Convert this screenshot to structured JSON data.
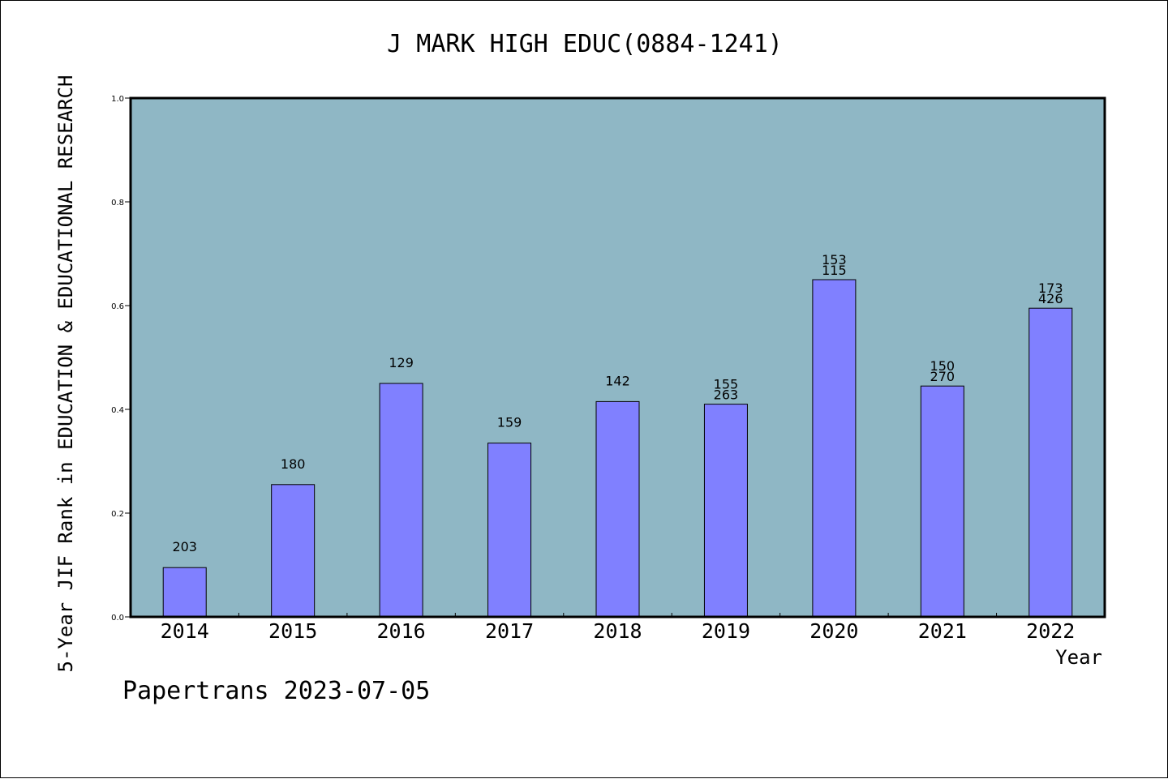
{
  "chart_data": {
    "type": "bar",
    "title": "J MARK HIGH EDUC(0884-1241)",
    "xlabel": "Year",
    "ylabel": "5-Year JIF Rank in EDUCATION & EDUCATIONAL RESEARCH",
    "ylim": [
      0,
      1.0
    ],
    "yticks": [
      "0.0",
      "0.2",
      "0.4",
      "0.6",
      "0.8",
      "1.0"
    ],
    "grid": false,
    "categories": [
      "2014",
      "2015",
      "2016",
      "2017",
      "2018",
      "2019",
      "2020",
      "2021",
      "2022"
    ],
    "values": [
      0.095,
      0.255,
      0.45,
      0.335,
      0.415,
      0.41,
      0.65,
      0.445,
      0.595
    ],
    "labels": [
      [
        "203"
      ],
      [
        "180"
      ],
      [
        "129"
      ],
      [
        "159"
      ],
      [
        "142"
      ],
      [
        "155",
        "263"
      ],
      [
        "153",
        "115"
      ],
      [
        "150",
        "270"
      ],
      [
        "173",
        "426"
      ]
    ],
    "colors": {
      "plot_background": "#8fb7c5",
      "bar_fill": "#8080ff",
      "bar_stroke": "#000000"
    }
  },
  "footer": "Papertrans 2023-07-05"
}
